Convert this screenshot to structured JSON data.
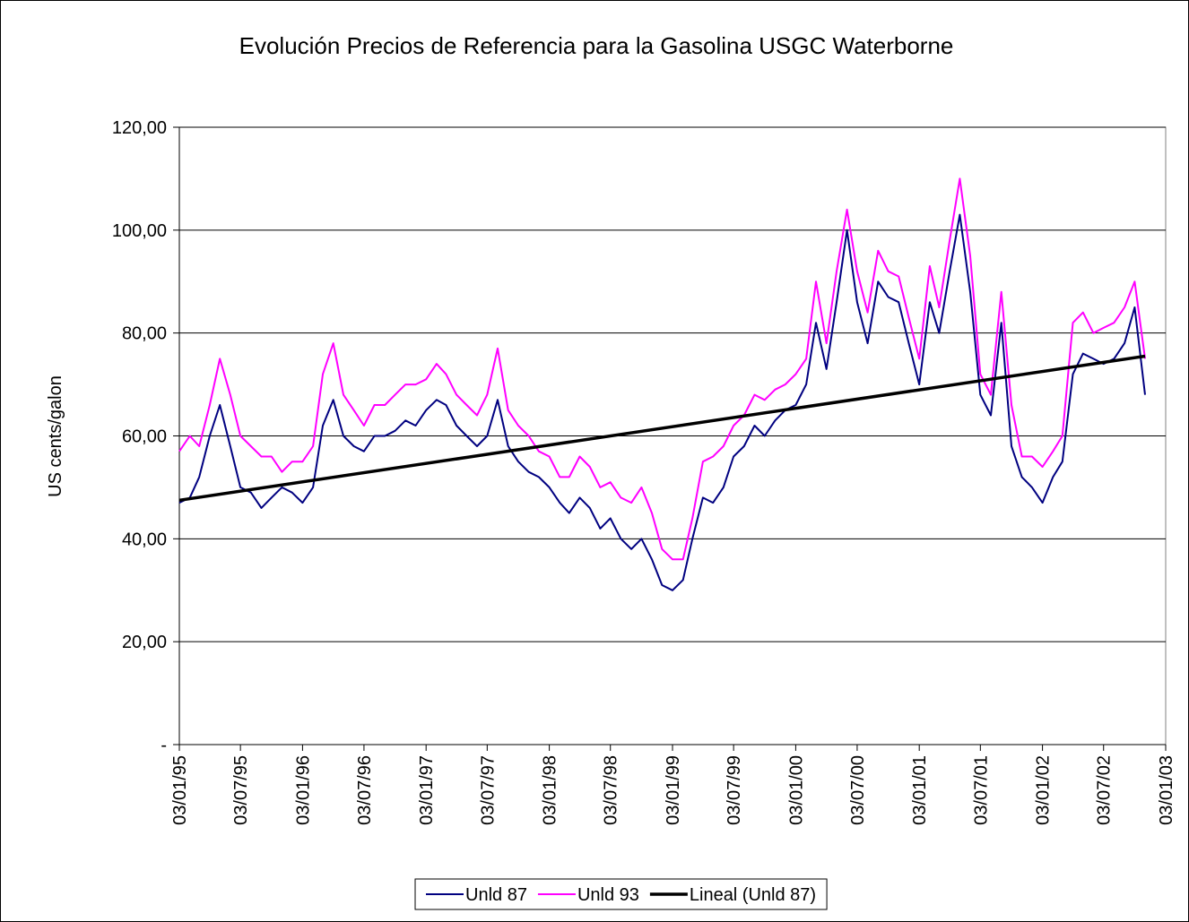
{
  "chart_data": {
    "type": "line",
    "title": "Evolución Precios de Referencia para la Gasolina USGC Waterborne",
    "y_label": "US cents/galon",
    "x": [
      "03/01/95",
      "03/02/95",
      "03/03/95",
      "03/04/95",
      "03/05/95",
      "03/06/95",
      "03/07/95",
      "03/08/95",
      "03/09/95",
      "03/10/95",
      "03/11/95",
      "03/12/95",
      "03/01/96",
      "03/02/96",
      "03/03/96",
      "03/04/96",
      "03/05/96",
      "03/06/96",
      "03/07/96",
      "03/08/96",
      "03/09/96",
      "03/10/96",
      "03/11/96",
      "03/12/96",
      "03/01/97",
      "03/02/97",
      "03/03/97",
      "03/04/97",
      "03/05/97",
      "03/06/97",
      "03/07/97",
      "03/08/97",
      "03/09/97",
      "03/10/97",
      "03/11/97",
      "03/12/97",
      "03/01/98",
      "03/02/98",
      "03/03/98",
      "03/04/98",
      "03/05/98",
      "03/06/98",
      "03/07/98",
      "03/08/98",
      "03/09/98",
      "03/10/98",
      "03/11/98",
      "03/12/98",
      "03/01/99",
      "03/02/99",
      "03/03/99",
      "03/04/99",
      "03/05/99",
      "03/06/99",
      "03/07/99",
      "03/08/99",
      "03/09/99",
      "03/10/99",
      "03/11/99",
      "03/12/99",
      "03/01/00",
      "03/02/00",
      "03/03/00",
      "03/04/00",
      "03/05/00",
      "03/06/00",
      "03/07/00",
      "03/08/00",
      "03/09/00",
      "03/10/00",
      "03/11/00",
      "03/12/00",
      "03/01/01",
      "03/02/01",
      "03/03/01",
      "03/04/01",
      "03/05/01",
      "03/06/01",
      "03/07/01",
      "03/08/01",
      "03/09/01",
      "03/10/01",
      "03/11/01",
      "03/12/01",
      "03/01/02",
      "03/02/02",
      "03/03/02",
      "03/04/02",
      "03/05/02",
      "03/06/02",
      "03/07/02",
      "03/08/02",
      "03/09/02",
      "03/10/02",
      "03/11/02"
    ],
    "series": [
      {
        "name": "Unld 87",
        "color": "#000080",
        "width": 2,
        "values": [
          47,
          48,
          52,
          60,
          66,
          58,
          50,
          49,
          46,
          48,
          50,
          49,
          47,
          50,
          62,
          67,
          60,
          58,
          57,
          60,
          60,
          61,
          63,
          62,
          65,
          67,
          66,
          62,
          60,
          58,
          60,
          67,
          58,
          55,
          53,
          52,
          50,
          47,
          45,
          48,
          46,
          42,
          44,
          40,
          38,
          40,
          36,
          31,
          30,
          32,
          40,
          48,
          47,
          50,
          56,
          58,
          62,
          60,
          63,
          65,
          66,
          70,
          82,
          73,
          86,
          100,
          86,
          78,
          90,
          87,
          86,
          78,
          70,
          86,
          80,
          92,
          103,
          88,
          68,
          64,
          82,
          58,
          52,
          50,
          47,
          52,
          55,
          72,
          76,
          75,
          74,
          75,
          78,
          85,
          68
        ]
      },
      {
        "name": "Unld 93",
        "color": "#ff00ff",
        "width": 2,
        "values": [
          57,
          60,
          58,
          66,
          75,
          68,
          60,
          58,
          56,
          56,
          53,
          55,
          55,
          58,
          72,
          78,
          68,
          65,
          62,
          66,
          66,
          68,
          70,
          70,
          71,
          74,
          72,
          68,
          66,
          64,
          68,
          77,
          65,
          62,
          60,
          57,
          56,
          52,
          52,
          56,
          54,
          50,
          51,
          48,
          47,
          50,
          45,
          38,
          36,
          36,
          44,
          55,
          56,
          58,
          62,
          64,
          68,
          67,
          69,
          70,
          72,
          75,
          90,
          78,
          92,
          104,
          92,
          84,
          96,
          92,
          91,
          83,
          75,
          93,
          85,
          98,
          110,
          95,
          72,
          68,
          88,
          66,
          56,
          56,
          54,
          57,
          60,
          82,
          84,
          80,
          81,
          82,
          85,
          90,
          75
        ]
      },
      {
        "name": "Lineal (Unld 87)",
        "color": "#000000",
        "width": 3.5,
        "x": [
          "03/01/95",
          "03/11/02"
        ],
        "values": [
          47.5,
          75.5
        ]
      }
    ],
    "xlim": [
      "03/01/95",
      "03/01/03"
    ],
    "xticks": [
      "03/01/95",
      "03/07/95",
      "03/01/96",
      "03/07/96",
      "03/01/97",
      "03/07/97",
      "03/01/98",
      "03/07/98",
      "03/01/99",
      "03/07/99",
      "03/01/00",
      "03/07/00",
      "03/01/01",
      "03/07/01",
      "03/01/02",
      "03/07/02",
      "03/01/03"
    ],
    "ylim": [
      0,
      120
    ],
    "yticks": [
      {
        "value": 0,
        "label": "-"
      },
      {
        "value": 20,
        "label": "20,00"
      },
      {
        "value": 40,
        "label": "40,00"
      },
      {
        "value": 60,
        "label": "60,00"
      },
      {
        "value": 80,
        "label": "80,00"
      },
      {
        "value": 100,
        "label": "100,00"
      },
      {
        "value": 120,
        "label": "120,00"
      }
    ],
    "grid": true,
    "legend": "bottom"
  }
}
